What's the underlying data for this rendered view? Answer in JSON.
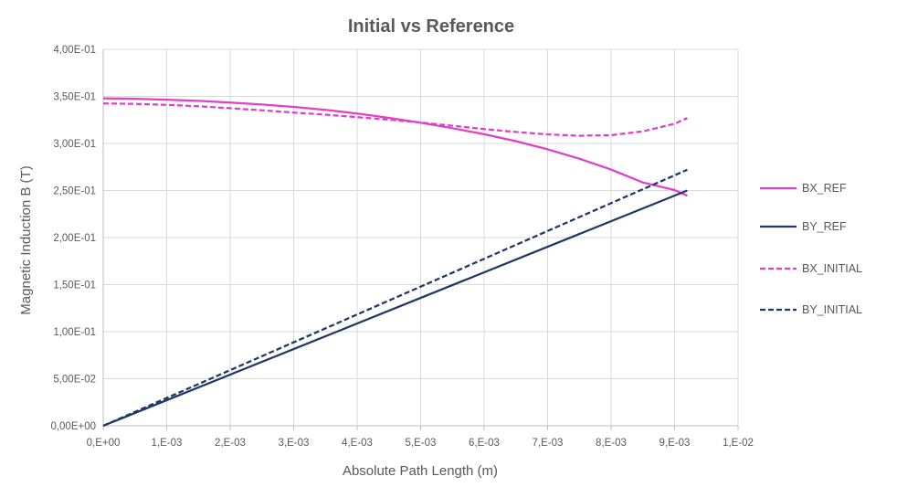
{
  "chart_data": {
    "type": "line",
    "title": "Initial vs Reference",
    "xlabel": "Absolute Path Length (m)",
    "ylabel": "Magnetic Induction B (T)",
    "xlim": [
      0,
      0.01
    ],
    "ylim": [
      0,
      0.4
    ],
    "x_ticks": [
      0,
      0.001,
      0.002,
      0.003,
      0.004,
      0.005,
      0.006,
      0.007,
      0.008,
      0.009,
      0.01
    ],
    "x_tick_labels": [
      "0,E+00",
      "1,E-03",
      "2,E-03",
      "3,E-03",
      "4,E-03",
      "5,E-03",
      "6,E-03",
      "7,E-03",
      "8,E-03",
      "9,E-03",
      "1,E-02"
    ],
    "y_ticks": [
      0,
      0.05,
      0.1,
      0.15,
      0.2,
      0.25,
      0.3,
      0.35,
      0.4
    ],
    "y_tick_labels": [
      "0,00E+00",
      "5,00E-02",
      "1,00E-01",
      "1,50E-01",
      "2,00E-01",
      "2,50E-01",
      "3,00E-01",
      "3,50E-01",
      "4,00E-01"
    ],
    "grid": true,
    "legend_position": "right",
    "series": [
      {
        "name": "BX_REF",
        "color": "#e040c8",
        "dash": "solid",
        "x": [
          0,
          0.0005,
          0.001,
          0.0015,
          0.002,
          0.0025,
          0.003,
          0.0035,
          0.004,
          0.0045,
          0.005,
          0.0055,
          0.006,
          0.0065,
          0.007,
          0.0075,
          0.008,
          0.0085,
          0.009,
          0.0092
        ],
        "y": [
          0.348,
          0.3475,
          0.3465,
          0.3452,
          0.3435,
          0.3414,
          0.3388,
          0.3356,
          0.3318,
          0.3272,
          0.322,
          0.3162,
          0.3098,
          0.3024,
          0.2938,
          0.2838,
          0.2722,
          0.2585,
          0.2505,
          0.2445
        ]
      },
      {
        "name": "BY_REF",
        "color": "#1f3864",
        "dash": "solid",
        "x": [
          0,
          0.0092
        ],
        "y": [
          0,
          0.25
        ]
      },
      {
        "name": "BX_INITIAL",
        "color": "#e040c8",
        "dash": "dashed",
        "x": [
          0,
          0.0005,
          0.001,
          0.0015,
          0.002,
          0.0025,
          0.003,
          0.0035,
          0.004,
          0.0045,
          0.005,
          0.0055,
          0.006,
          0.0065,
          0.007,
          0.0075,
          0.008,
          0.0085,
          0.009,
          0.0092
        ],
        "y": [
          0.3425,
          0.342,
          0.341,
          0.3395,
          0.3375,
          0.3352,
          0.3328,
          0.3306,
          0.328,
          0.3252,
          0.3222,
          0.3188,
          0.3152,
          0.3122,
          0.3096,
          0.3082,
          0.3088,
          0.3128,
          0.321,
          0.327
        ]
      },
      {
        "name": "BY_INITIAL",
        "color": "#1f3864",
        "dash": "dashed",
        "x": [
          0,
          0.0092
        ],
        "y": [
          0,
          0.272
        ]
      }
    ]
  }
}
